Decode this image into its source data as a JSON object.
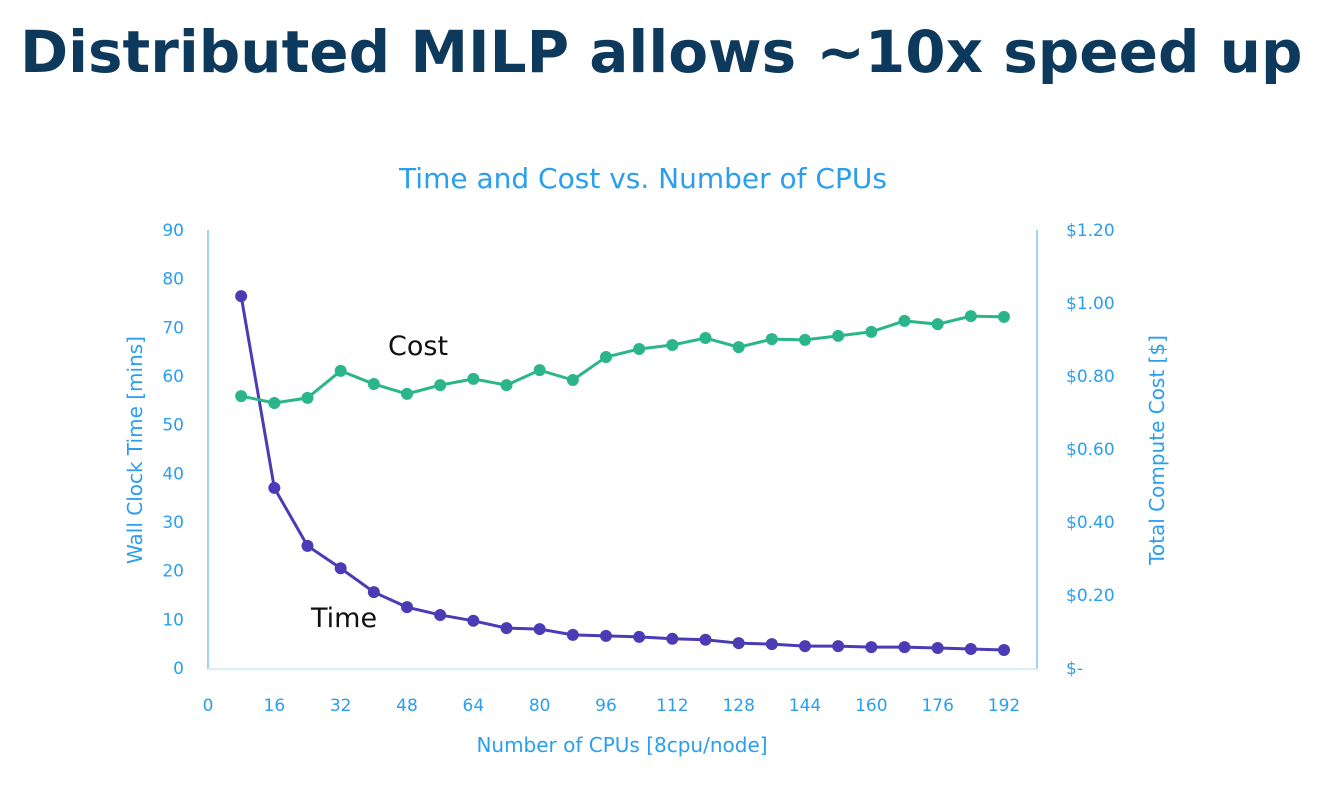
{
  "slide": {
    "title": "Distributed MILP allows ~10x speed up"
  },
  "chart_data": {
    "type": "line",
    "title": "Time and Cost vs. Number of CPUs",
    "xlabel": "Number of CPUs [8cpu/node]",
    "ylabel": "Wall Clock Time [mins]",
    "y2label": "Total Compute Cost [$]",
    "xlim": [
      0,
      192
    ],
    "ylim": [
      0,
      90
    ],
    "y2lim": [
      0,
      1.2
    ],
    "x_ticks": [
      "0",
      "16",
      "32",
      "48",
      "64",
      "80",
      "96",
      "112",
      "128",
      "144",
      "160",
      "176",
      "192"
    ],
    "y_ticks": [
      "0",
      "10",
      "20",
      "30",
      "40",
      "50",
      "60",
      "70",
      "80",
      "90"
    ],
    "y2_ticks": [
      "$-",
      "$0.20",
      "$0.40",
      "$0.60",
      "$0.80",
      "$1.00",
      "$1.20"
    ],
    "grid": false,
    "x": [
      8,
      16,
      24,
      32,
      40,
      48,
      56,
      64,
      72,
      80,
      88,
      96,
      104,
      112,
      120,
      128,
      136,
      144,
      152,
      160,
      168,
      176,
      184,
      192
    ],
    "series": [
      {
        "name": "Time",
        "axis": "left",
        "color": "#4b3bb5",
        "values": [
          76.4,
          37.0,
          25.1,
          20.5,
          15.6,
          12.5,
          10.9,
          9.7,
          8.2,
          8.0,
          6.8,
          6.6,
          6.4,
          6.0,
          5.8,
          5.1,
          4.9,
          4.5,
          4.5,
          4.3,
          4.3,
          4.1,
          3.9,
          3.7
        ]
      },
      {
        "name": "Cost",
        "axis": "right",
        "color": "#2bb58a",
        "values": [
          0.745,
          0.726,
          0.74,
          0.814,
          0.778,
          0.751,
          0.775,
          0.792,
          0.775,
          0.816,
          0.789,
          0.852,
          0.874,
          0.885,
          0.904,
          0.879,
          0.901,
          0.899,
          0.91,
          0.921,
          0.951,
          0.942,
          0.964,
          0.962
        ]
      }
    ]
  }
}
